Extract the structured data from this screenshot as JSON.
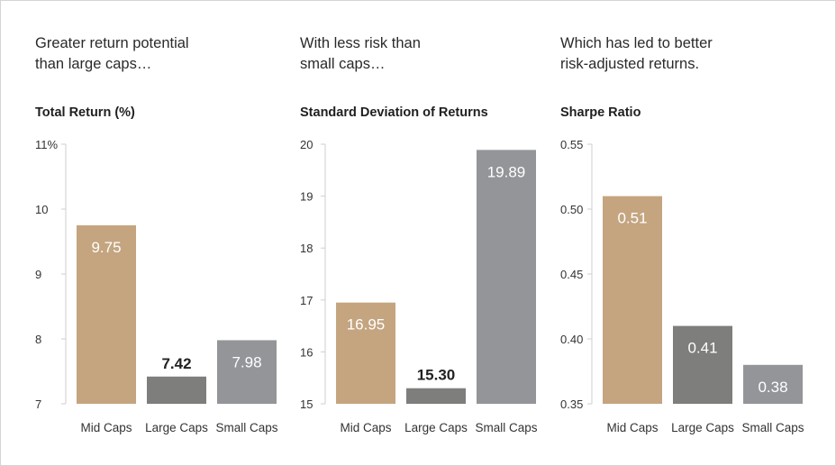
{
  "colors": {
    "mid_caps": "#c4a580",
    "large_caps": "#7e7f7d",
    "small_caps": "#949599",
    "axis": "#cfcfcf",
    "label_inside": "#ffffff",
    "label_outside": "#222222"
  },
  "panels": [
    {
      "headline": "Greater return potential\nthan large caps…"
    },
    {
      "headline": "With less risk than\nsmall caps…"
    },
    {
      "headline": "Which has led to better\nrisk-adjusted returns."
    }
  ],
  "chart_data": [
    {
      "type": "bar",
      "title": "Total Return (%)",
      "categories": [
        "Mid Caps",
        "Large Caps",
        "Small Caps"
      ],
      "values": [
        9.75,
        7.42,
        7.98
      ],
      "value_labels": [
        "9.75",
        "7.42",
        "7.98"
      ],
      "ylim": [
        7,
        11
      ],
      "yticks": [
        7,
        8,
        9,
        10,
        11
      ],
      "ytick_labels": [
        "7",
        "8",
        "9",
        "10",
        "11%"
      ],
      "xlabel": "",
      "ylabel": ""
    },
    {
      "type": "bar",
      "title": "Standard Deviation of Returns",
      "categories": [
        "Mid Caps",
        "Large Caps",
        "Small Caps"
      ],
      "values": [
        16.95,
        15.3,
        19.89
      ],
      "value_labels": [
        "16.95",
        "15.30",
        "19.89"
      ],
      "ylim": [
        15,
        20
      ],
      "yticks": [
        15,
        16,
        17,
        18,
        19,
        20
      ],
      "ytick_labels": [
        "15",
        "16",
        "17",
        "18",
        "19",
        "20"
      ],
      "xlabel": "",
      "ylabel": ""
    },
    {
      "type": "bar",
      "title": "Sharpe Ratio",
      "categories": [
        "Mid Caps",
        "Large Caps",
        "Small Caps"
      ],
      "values": [
        0.51,
        0.41,
        0.38
      ],
      "value_labels": [
        "0.51",
        "0.41",
        "0.38"
      ],
      "ylim": [
        0.35,
        0.55
      ],
      "yticks": [
        0.35,
        0.4,
        0.45,
        0.5,
        0.55
      ],
      "ytick_labels": [
        "0.35",
        "0.40",
        "0.45",
        "0.50",
        "0.55"
      ],
      "xlabel": "",
      "ylabel": ""
    }
  ]
}
